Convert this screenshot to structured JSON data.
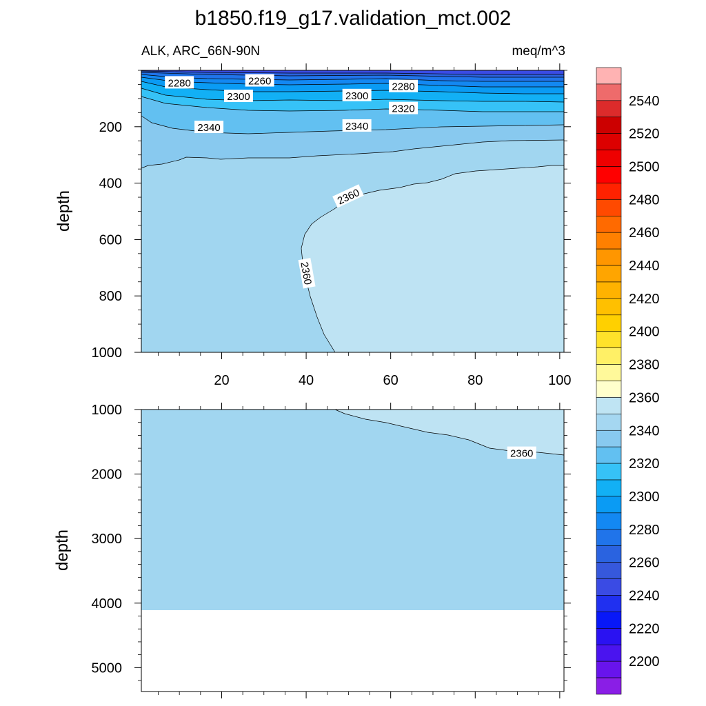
{
  "figure": {
    "title": "b1850.f19_g17.validation_mct.002"
  },
  "chart_data": {
    "type": "heatmap",
    "variable": "ALK, ARC_66N-90N",
    "units": "meq/m^3",
    "x_ticks": [
      20,
      40,
      60,
      80,
      100
    ],
    "x_range": [
      1,
      101
    ],
    "upper_panel": {
      "ylabel": "depth",
      "ylim": [
        0,
        1000
      ],
      "y_ticks": [
        200,
        400,
        600,
        800,
        1000
      ],
      "contour_labels": [
        {
          "text": "2280",
          "x": 10,
          "y": 45,
          "angle": 0
        },
        {
          "text": "2260",
          "x": 29,
          "y": 38,
          "angle": 0
        },
        {
          "text": "2300",
          "x": 24,
          "y": 93,
          "angle": 0
        },
        {
          "text": "2300",
          "x": 52,
          "y": 90,
          "angle": 0
        },
        {
          "text": "2280",
          "x": 63,
          "y": 58,
          "angle": 0
        },
        {
          "text": "2320",
          "x": 63,
          "y": 136,
          "angle": 0
        },
        {
          "text": "2340",
          "x": 17,
          "y": 203,
          "angle": 0
        },
        {
          "text": "2340",
          "x": 52,
          "y": 198,
          "angle": 0
        },
        {
          "text": "2360",
          "x": 50,
          "y": 448,
          "angle": -25
        },
        {
          "text": "2360",
          "x": 40,
          "y": 720,
          "angle": 80
        }
      ]
    },
    "lower_panel": {
      "ylabel": "depth",
      "ylim": [
        1000,
        5370
      ],
      "y_ticks": [
        1000,
        2000,
        3000,
        4000,
        5000
      ],
      "bottom_depth": 4120,
      "contour_labels": [
        {
          "text": "2360",
          "x": 91,
          "y": 1680,
          "angle": 0
        }
      ]
    },
    "colorbar": {
      "labels": [
        "2540",
        "2520",
        "2500",
        "2480",
        "2460",
        "2440",
        "2420",
        "2400",
        "2380",
        "2360",
        "2340",
        "2320",
        "2300",
        "2280",
        "2260",
        "2240",
        "2220",
        "2200"
      ],
      "colors": [
        "#ffb3b3",
        "#ee6b6b",
        "#dc2b2b",
        "#cc0000",
        "#dd0000",
        "#ee0000",
        "#ff0000",
        "#ff2200",
        "#ff4a00",
        "#ff6a00",
        "#ff8000",
        "#ff9600",
        "#ffa500",
        "#ffb200",
        "#ffc000",
        "#ffd000",
        "#ffe22a",
        "#fff066",
        "#fff99a",
        "#ffffcc",
        "#bfe4f3",
        "#a5d7f1",
        "#88c9ef",
        "#62c0f1",
        "#36c2f7",
        "#12b0f5",
        "#0a9bf4",
        "#1388f2",
        "#2074ea",
        "#2a63e0",
        "#3658dc",
        "#3a4be4",
        "#2030f0",
        "#0818f8",
        "#2a12f2",
        "#4a14ef",
        "#6814ec",
        "#8a1ee6"
      ]
    },
    "region_colors": {
      "deep_water": "#a1d6f0",
      "intermediate": "#bee3f3",
      "grid_line": "#000000"
    }
  }
}
